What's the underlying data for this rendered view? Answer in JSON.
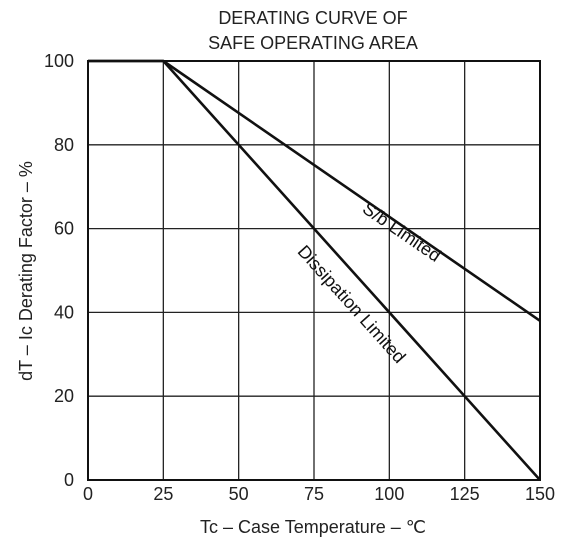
{
  "chart_data": {
    "type": "line",
    "title_lines": [
      "DERATING CURVE OF",
      "SAFE OPERATING AREA"
    ],
    "xlabel": "Tc – Case Temperature – ℃",
    "ylabel": "dT – Ic Derating Factor – %",
    "xlim": [
      0,
      150
    ],
    "ylim": [
      0,
      100
    ],
    "x_ticks": [
      0,
      25,
      50,
      75,
      100,
      125,
      150
    ],
    "y_ticks": [
      0,
      20,
      40,
      60,
      80,
      100
    ],
    "grid": true,
    "series": [
      {
        "name": "S/b Limited",
        "x": [
          0,
          25,
          150
        ],
        "y": [
          100,
          100,
          38
        ]
      },
      {
        "name": "Dissipation Limited",
        "x": [
          0,
          25,
          150
        ],
        "y": [
          100,
          100,
          0
        ]
      }
    ],
    "annotations": [
      {
        "text": "S/b Limited",
        "x": 103,
        "y": 58,
        "series": 0
      },
      {
        "text": "Dissipation Limited",
        "x": 86,
        "y": 41,
        "series": 1
      }
    ]
  }
}
